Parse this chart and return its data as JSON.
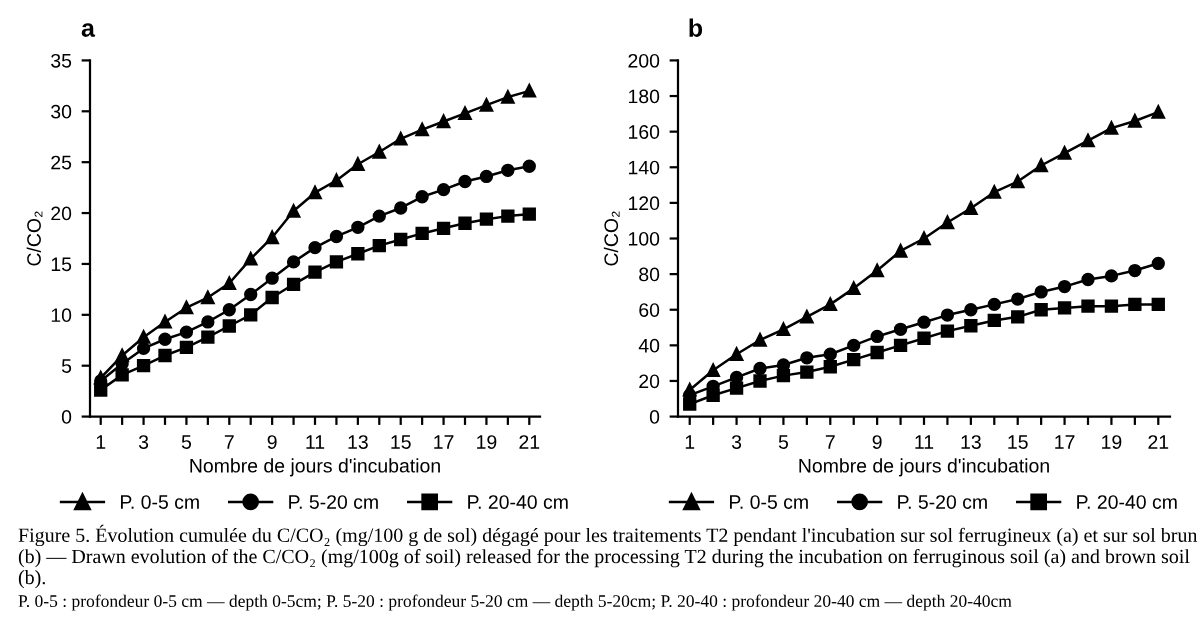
{
  "chart_data": [
    {
      "type": "line",
      "title": "a",
      "xlabel": "Nombre de jours d'incubation",
      "ylabel": "C/CO₂",
      "x": [
        1,
        2,
        3,
        4,
        5,
        6,
        7,
        8,
        9,
        10,
        11,
        12,
        13,
        14,
        15,
        16,
        17,
        18,
        19,
        20,
        21
      ],
      "xlim": [
        0.5,
        21.5
      ],
      "xticks": [
        1,
        {
          "value": 2,
          "label": null
        },
        3,
        {
          "value": 4,
          "label": null
        },
        5,
        {
          "value": 6,
          "label": null
        },
        7,
        {
          "value": 8,
          "label": null
        },
        9,
        {
          "value": 10,
          "label": null
        },
        11,
        {
          "value": 12,
          "label": null
        },
        13,
        {
          "value": 14,
          "label": null
        },
        15,
        {
          "value": 16,
          "label": null
        },
        17,
        {
          "value": 18,
          "label": null
        },
        19,
        {
          "value": 20,
          "label": null
        },
        21
      ],
      "ylim": [
        0,
        35
      ],
      "yticks": [
        0,
        5,
        10,
        15,
        20,
        25,
        30,
        35
      ],
      "grid": false,
      "legend": "bottom",
      "series": [
        {
          "name": "P. 0-5 cm",
          "color": "#000000",
          "marker": "triangle",
          "values": [
            3.8,
            6,
            7.8,
            9.3,
            10.7,
            11.7,
            13.1,
            15.5,
            17.6,
            20.2,
            22,
            23.2,
            24.8,
            26,
            27.3,
            28.2,
            29,
            29.8,
            30.6,
            31.4,
            32
          ]
        },
        {
          "name": "P. 5-20 cm",
          "color": "#000000",
          "marker": "circle",
          "values": [
            3.5,
            5.2,
            6.7,
            7.6,
            8.3,
            9.3,
            10.5,
            12,
            13.6,
            15.2,
            16.6,
            17.7,
            18.6,
            19.7,
            20.5,
            21.6,
            22.3,
            23.1,
            23.6,
            24.2,
            24.6
          ]
        },
        {
          "name": "P. 20-40 cm",
          "color": "#000000",
          "marker": "square",
          "values": [
            2.6,
            4.1,
            5,
            6,
            6.8,
            7.8,
            8.9,
            10,
            11.7,
            13,
            14.2,
            15.2,
            16,
            16.8,
            17.4,
            18,
            18.5,
            19,
            19.4,
            19.7,
            19.9
          ]
        }
      ],
      "annotations": [
        "Figure 5. Évolution cumulée du C/CO₂ (mg/100 g de sol) dégagé pour les traitements T2 pendant l'incubation sur sol ferrugineux (a) et sur sol brun (b) — Drawn evolution of the C/CO₂ (mg/100g of soil) released for the processing T2 during the incubation on ferruginous soil (a) and brown soil (b).",
        "P. 0-5 : profondeur 0-5 cm — depth 0-5cm; P. 5-20 : profondeur 5-20 cm — depth 5-20cm; P. 20-40 : profondeur 20-40 cm — depth 20-40cm"
      ]
    },
    {
      "type": "line",
      "title": "b",
      "xlabel": "Nombre de jours d'incubation",
      "ylabel": "C/CO₂",
      "x": [
        1,
        2,
        3,
        4,
        5,
        6,
        7,
        8,
        9,
        10,
        11,
        12,
        13,
        14,
        15,
        16,
        17,
        18,
        19,
        20,
        21
      ],
      "xlim": [
        0.5,
        21.5
      ],
      "xticks": [
        1,
        {
          "value": 2,
          "label": null
        },
        3,
        {
          "value": 4,
          "label": null
        },
        5,
        {
          "value": 6,
          "label": null
        },
        7,
        {
          "value": 8,
          "label": null
        },
        9,
        {
          "value": 10,
          "label": null
        },
        11,
        {
          "value": 12,
          "label": null
        },
        13,
        {
          "value": 14,
          "label": null
        },
        15,
        {
          "value": 16,
          "label": null
        },
        17,
        {
          "value": 18,
          "label": null
        },
        19,
        {
          "value": 20,
          "label": null
        },
        21
      ],
      "ylim": [
        0,
        200
      ],
      "yticks": [
        0,
        20,
        40,
        60,
        80,
        100,
        120,
        140,
        160,
        180,
        200
      ],
      "grid": false,
      "legend": "bottom",
      "series": [
        {
          "name": "P. 0-5 cm",
          "color": "#000000",
          "marker": "triangle",
          "values": [
            15,
            26,
            35,
            43,
            49,
            56,
            63,
            72,
            82,
            93,
            100,
            109,
            117,
            126,
            132,
            141,
            148,
            155,
            162,
            166,
            171
          ]
        },
        {
          "name": "P. 5-20 cm",
          "color": "#000000",
          "marker": "circle",
          "values": [
            12,
            17,
            22,
            27,
            29,
            33,
            35,
            40,
            45,
            49,
            53,
            57,
            60,
            63,
            66,
            70,
            73,
            77,
            79,
            82,
            86
          ]
        },
        {
          "name": "P. 20-40 cm",
          "color": "#000000",
          "marker": "square",
          "values": [
            7,
            12,
            16,
            20,
            23,
            25,
            28,
            32,
            36,
            40,
            44,
            48,
            51,
            54,
            56,
            60,
            61,
            62,
            62,
            63,
            63
          ]
        }
      ]
    }
  ]
}
